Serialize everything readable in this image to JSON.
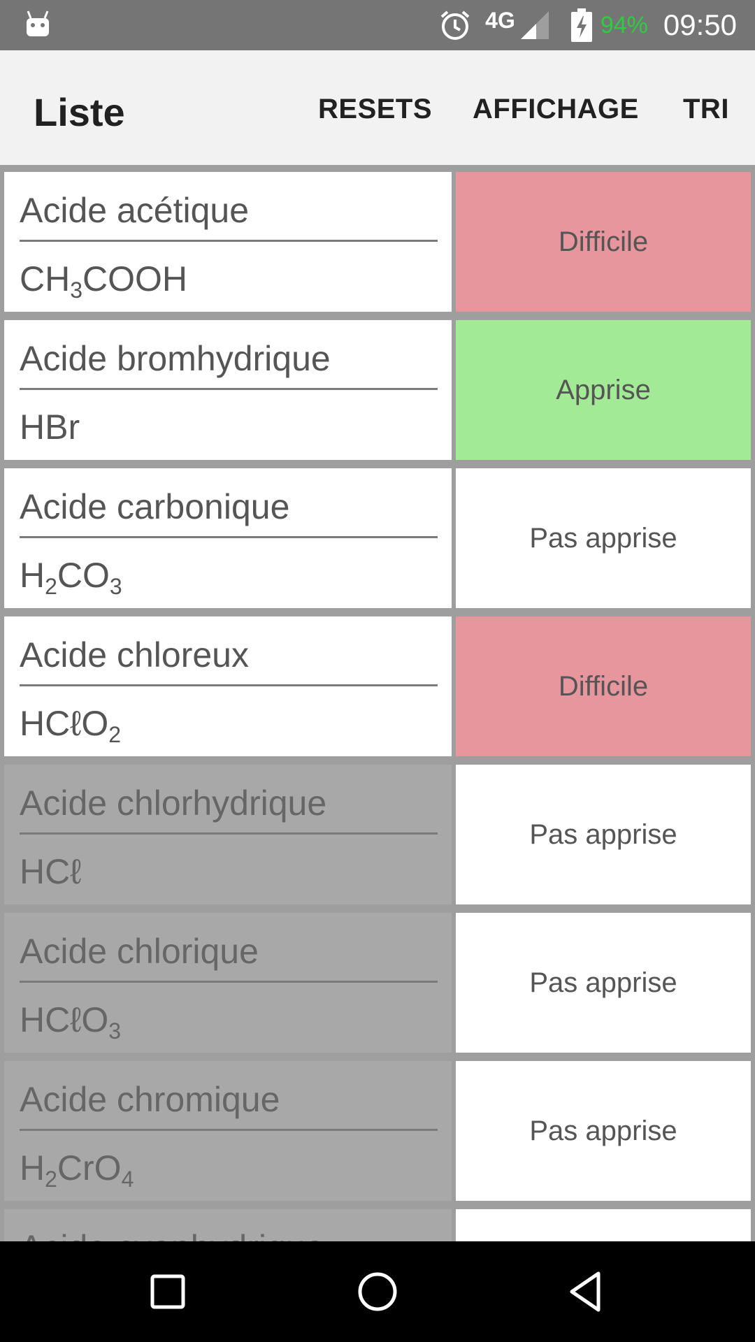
{
  "status_bar": {
    "network": "4G",
    "battery_percent": "94%",
    "time": "09:50",
    "icons": [
      "android-icon",
      "alarm-icon",
      "signal-icon",
      "battery-charging-icon"
    ]
  },
  "toolbar": {
    "title": "Liste",
    "actions": [
      "RESETS",
      "AFFICHAGE",
      "TRI"
    ]
  },
  "list": {
    "items": [
      {
        "name": "Acide acétique",
        "formula": [
          [
            "CH",
            ""
          ],
          [
            "3",
            "sub"
          ],
          [
            "COOH",
            ""
          ]
        ],
        "status": "Difficile",
        "status_type": "difficile",
        "disabled": false
      },
      {
        "name": "Acide bromhydrique",
        "formula": [
          [
            "HBr",
            ""
          ]
        ],
        "status": "Apprise",
        "status_type": "apprise",
        "disabled": false
      },
      {
        "name": "Acide carbonique",
        "formula": [
          [
            "H",
            ""
          ],
          [
            "2",
            "sub"
          ],
          [
            "CO",
            ""
          ],
          [
            "3",
            "sub"
          ]
        ],
        "status": "Pas apprise",
        "status_type": "pas-apprise",
        "disabled": false
      },
      {
        "name": "Acide chloreux",
        "formula": [
          [
            "HCℓO",
            ""
          ],
          [
            "2",
            "sub"
          ]
        ],
        "status": "Difficile",
        "status_type": "difficile",
        "disabled": false
      },
      {
        "name": "Acide chlorhydrique",
        "formula": [
          [
            "HCℓ",
            ""
          ]
        ],
        "status": "Pas apprise",
        "status_type": "pas-apprise",
        "disabled": true
      },
      {
        "name": "Acide chlorique",
        "formula": [
          [
            "HCℓO",
            ""
          ],
          [
            "3",
            "sub"
          ]
        ],
        "status": "Pas apprise",
        "status_type": "pas-apprise",
        "disabled": true
      },
      {
        "name": "Acide chromique",
        "formula": [
          [
            "H",
            ""
          ],
          [
            "2",
            "sub"
          ],
          [
            "CrO",
            ""
          ],
          [
            "4",
            "sub"
          ]
        ],
        "status": "Pas apprise",
        "status_type": "pas-apprise",
        "disabled": true
      },
      {
        "name": "Acide cyanhydrique",
        "formula": [],
        "status": "",
        "status_type": "pas-apprise",
        "disabled": true
      }
    ]
  },
  "colors": {
    "difficile": "#e8969d",
    "apprise": "#a3ea96",
    "pas_apprise": "#ffffff",
    "disabled_cell": "#a8a8a8",
    "status_bar": "#757575",
    "battery_text": "#2ecc40"
  },
  "nav_bar": {
    "icons": [
      "recent-apps-icon",
      "home-icon",
      "back-icon"
    ]
  }
}
